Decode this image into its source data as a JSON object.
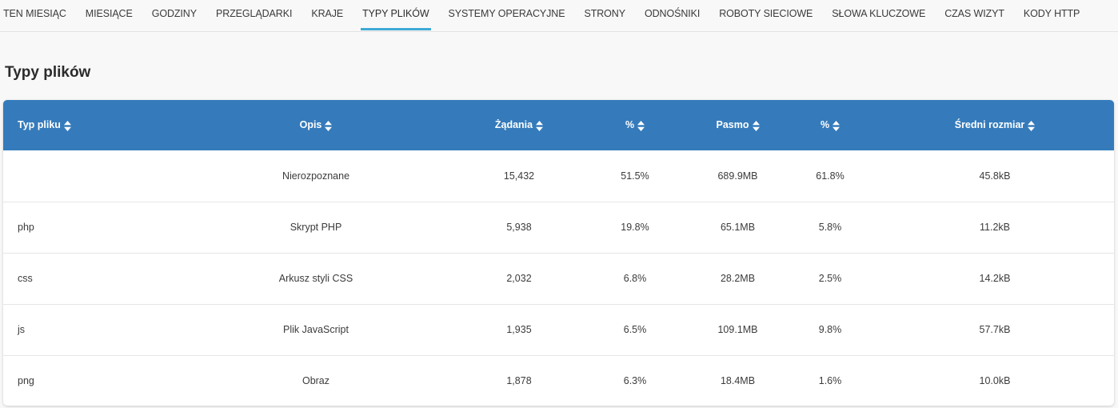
{
  "nav": {
    "tabs": [
      {
        "label": "TEN MIESIĄC"
      },
      {
        "label": "MIESIĄCE"
      },
      {
        "label": "GODZINY"
      },
      {
        "label": "PRZEGLĄDARKI"
      },
      {
        "label": "KRAJE"
      },
      {
        "label": "TYPY PLIKÓW"
      },
      {
        "label": "SYSTEMY OPERACYJNE"
      },
      {
        "label": "STRONY"
      },
      {
        "label": "ODNOŚNIKI"
      },
      {
        "label": "ROBOTY SIECIOWE"
      },
      {
        "label": "SŁOWA KLUCZOWE"
      },
      {
        "label": "CZAS WIZYT"
      },
      {
        "label": "KODY HTTP"
      }
    ],
    "active_tab": "TYPY PLIKÓW"
  },
  "section": {
    "title": "Typy plików"
  },
  "table": {
    "columns": [
      {
        "label": "Typ pliku"
      },
      {
        "label": "Opis"
      },
      {
        "label": "Żądania"
      },
      {
        "label": "%"
      },
      {
        "label": "Pasmo"
      },
      {
        "label": "%"
      },
      {
        "label": "Średni rozmiar"
      }
    ],
    "rows": [
      {
        "type": "",
        "description": "Nierozpoznane",
        "requests": "15,432",
        "requests_pct": "51.5%",
        "bandwidth": "689.9MB",
        "bandwidth_pct": "61.8%",
        "avg_size": "45.8kB"
      },
      {
        "type": "php",
        "description": "Skrypt PHP",
        "requests": "5,938",
        "requests_pct": "19.8%",
        "bandwidth": "65.1MB",
        "bandwidth_pct": "5.8%",
        "avg_size": "11.2kB"
      },
      {
        "type": "css",
        "description": "Arkusz styli CSS",
        "requests": "2,032",
        "requests_pct": "6.8%",
        "bandwidth": "28.2MB",
        "bandwidth_pct": "2.5%",
        "avg_size": "14.2kB"
      },
      {
        "type": "js",
        "description": "Plik JavaScript",
        "requests": "1,935",
        "requests_pct": "6.5%",
        "bandwidth": "109.1MB",
        "bandwidth_pct": "9.8%",
        "avg_size": "57.7kB"
      },
      {
        "type": "png",
        "description": "Obraz",
        "requests": "1,878",
        "requests_pct": "6.3%",
        "bandwidth": "18.4MB",
        "bandwidth_pct": "1.6%",
        "avg_size": "10.0kB"
      }
    ]
  },
  "colors": {
    "header_bg": "#357bbb",
    "active_tab_underline": "#3fa9d6"
  },
  "icons": {
    "sort": "sort-icon"
  }
}
